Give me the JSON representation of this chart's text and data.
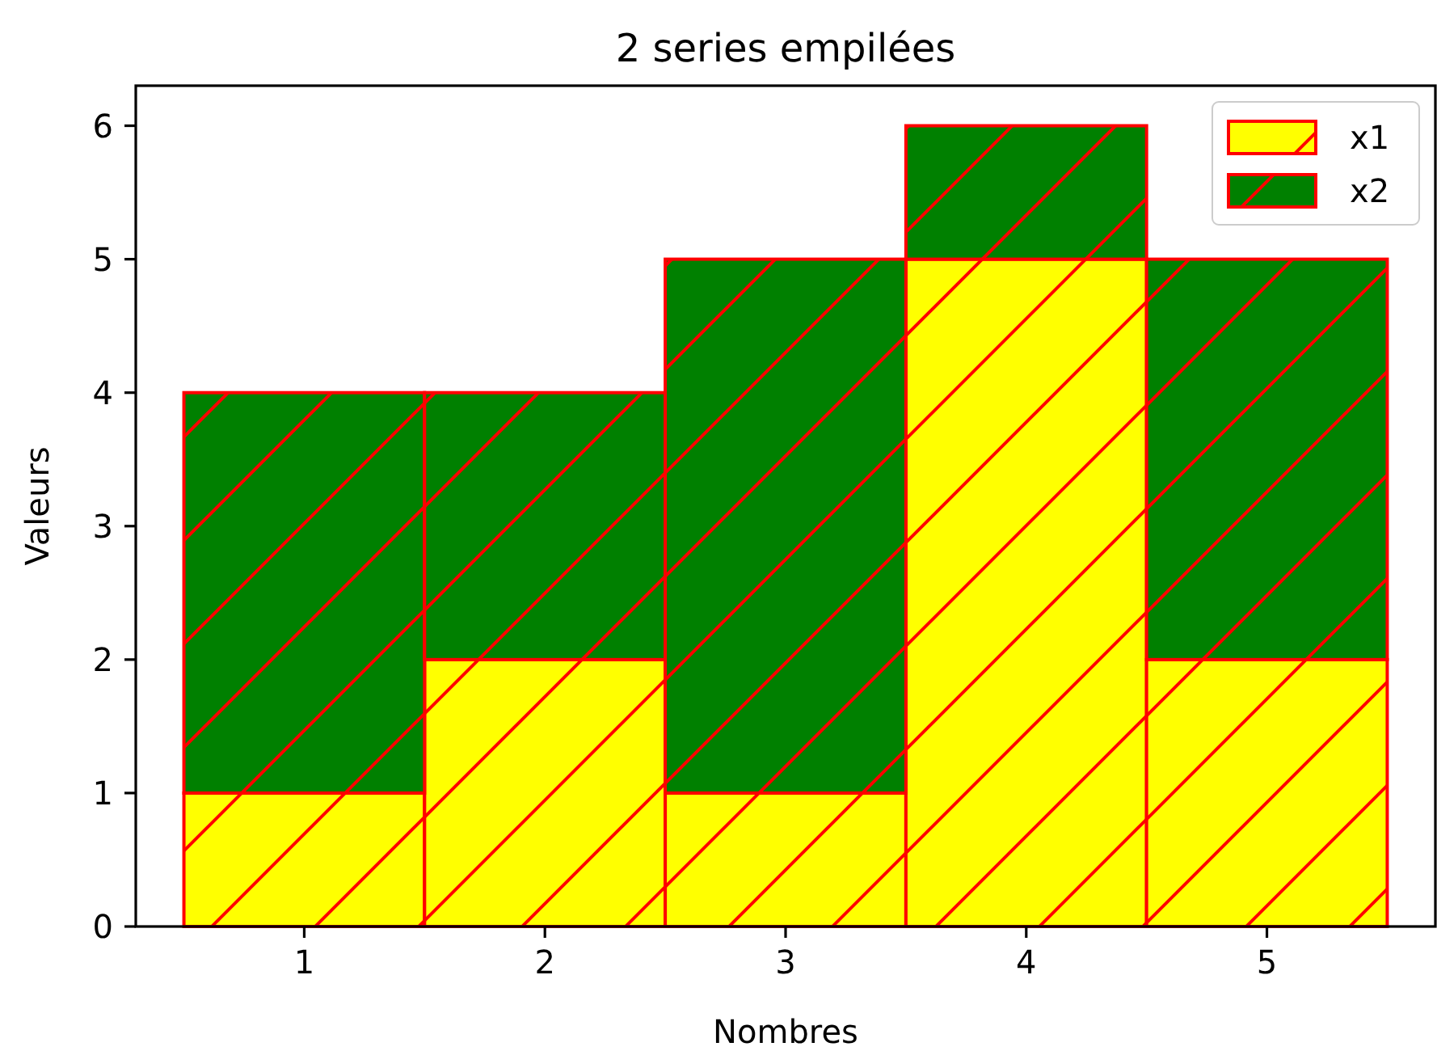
{
  "chart_data": {
    "type": "bar",
    "title": "2 series empilées",
    "xlabel": "Nombres",
    "ylabel": "Valeurs",
    "categories": [
      "1",
      "2",
      "3",
      "4",
      "5"
    ],
    "stacked": true,
    "series": [
      {
        "name": "x1",
        "color": "#ffff00",
        "values": [
          1,
          2,
          1,
          5,
          2
        ]
      },
      {
        "name": "x2",
        "color": "#008000",
        "values": [
          3,
          2,
          4,
          1,
          3
        ]
      }
    ],
    "ylim": [
      0,
      6.3
    ],
    "yticks": [
      0,
      1,
      2,
      3,
      4,
      5,
      6
    ],
    "grid": false,
    "legend": "top right"
  }
}
